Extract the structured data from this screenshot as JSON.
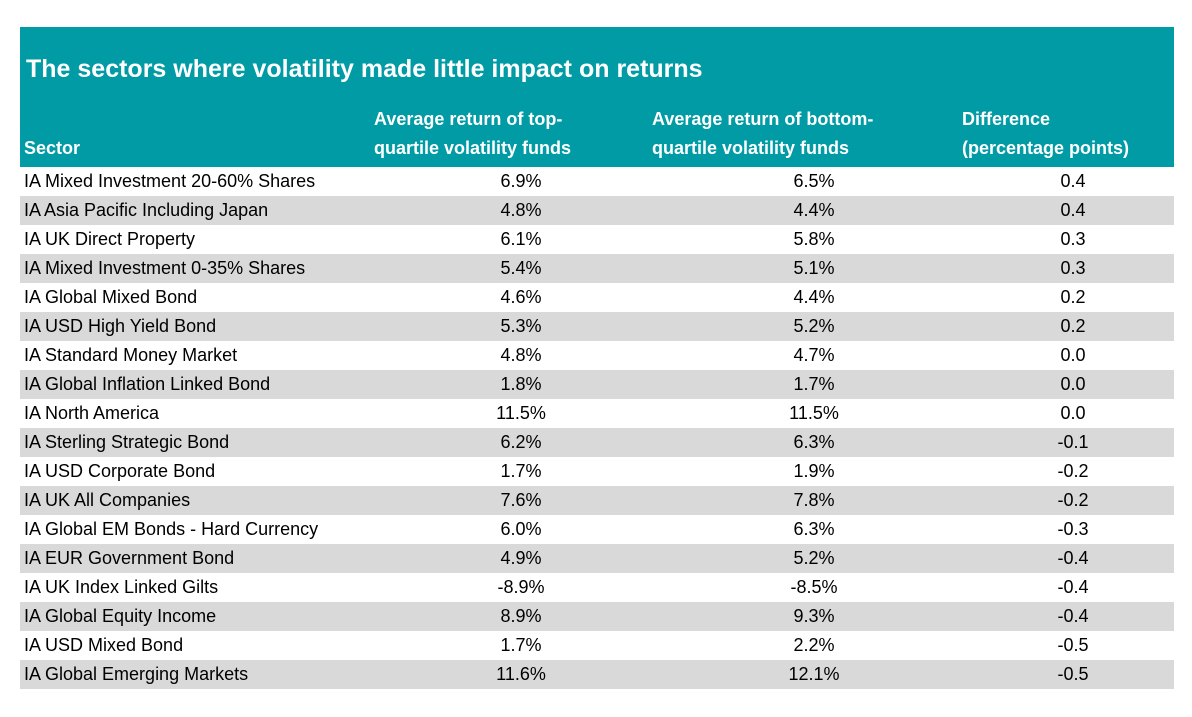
{
  "chart_data": {
    "type": "table",
    "title": "The sectors where volatility made little impact on returns",
    "columns": [
      [
        "Sector"
      ],
      [
        "Average return of top-",
        "quartile volatility funds"
      ],
      [
        "Average return of bottom-",
        "quartile volatility funds"
      ],
      [
        "Difference",
        "(percentage points)"
      ]
    ],
    "rows": [
      {
        "sector": "IA Mixed Investment 20-60% Shares",
        "top": "6.9%",
        "bottom": "6.5%",
        "diff": "0.4"
      },
      {
        "sector": "IA Asia Pacific Including Japan",
        "top": "4.8%",
        "bottom": "4.4%",
        "diff": "0.4"
      },
      {
        "sector": "IA UK Direct Property",
        "top": "6.1%",
        "bottom": "5.8%",
        "diff": "0.3"
      },
      {
        "sector": "IA Mixed Investment 0-35% Shares",
        "top": "5.4%",
        "bottom": "5.1%",
        "diff": "0.3"
      },
      {
        "sector": "IA Global Mixed Bond",
        "top": "4.6%",
        "bottom": "4.4%",
        "diff": "0.2"
      },
      {
        "sector": "IA USD High Yield Bond",
        "top": "5.3%",
        "bottom": "5.2%",
        "diff": "0.2"
      },
      {
        "sector": "IA Standard Money Market",
        "top": "4.8%",
        "bottom": "4.7%",
        "diff": "0.0"
      },
      {
        "sector": "IA Global Inflation Linked Bond",
        "top": "1.8%",
        "bottom": "1.7%",
        "diff": "0.0"
      },
      {
        "sector": "IA North America",
        "top": "11.5%",
        "bottom": "11.5%",
        "diff": "0.0"
      },
      {
        "sector": "IA Sterling Strategic Bond",
        "top": "6.2%",
        "bottom": "6.3%",
        "diff": "-0.1"
      },
      {
        "sector": "IA USD Corporate Bond",
        "top": "1.7%",
        "bottom": "1.9%",
        "diff": "-0.2"
      },
      {
        "sector": "IA UK All Companies",
        "top": "7.6%",
        "bottom": "7.8%",
        "diff": "-0.2"
      },
      {
        "sector": "IA Global EM Bonds - Hard Currency",
        "top": "6.0%",
        "bottom": "6.3%",
        "diff": "-0.3"
      },
      {
        "sector": "IA EUR Government Bond",
        "top": "4.9%",
        "bottom": "5.2%",
        "diff": "-0.4"
      },
      {
        "sector": "IA UK Index Linked Gilts",
        "top": "-8.9%",
        "bottom": "-8.5%",
        "diff": "-0.4"
      },
      {
        "sector": "IA Global Equity Income",
        "top": "8.9%",
        "bottom": "9.3%",
        "diff": "-0.4"
      },
      {
        "sector": "IA USD Mixed Bond",
        "top": "1.7%",
        "bottom": "2.2%",
        "diff": "-0.5"
      },
      {
        "sector": "IA Global Emerging Markets",
        "top": "11.6%",
        "bottom": "12.1%",
        "diff": "-0.5"
      }
    ],
    "colors": {
      "header_bg": "#009ba4",
      "header_text": "#ffffff",
      "stripe": "#d9d9d9"
    }
  }
}
